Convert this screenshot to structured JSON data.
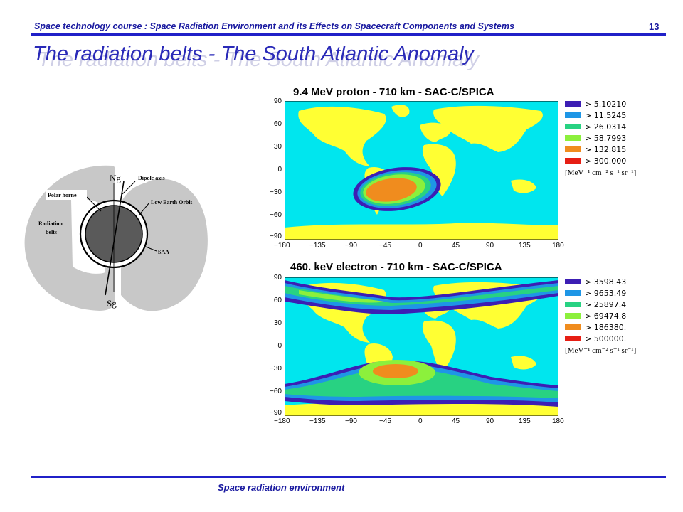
{
  "header": {
    "course_text": "Space technology course : Space Radiation Environment and its Effects on Spacecraft Components and Systems",
    "page_number": "13"
  },
  "slide": {
    "title": "The radiation belts - The South Atlantic Anomaly"
  },
  "diagram": {
    "labels": {
      "north": "Ng",
      "south": "Sg",
      "dipole_axis": "Dipole axis",
      "polar_horne": "Polar horne",
      "low_earth_orbit": "Low Earth Orbit",
      "radiation": "Radiation",
      "belts": "belts",
      "saa": "SAA"
    }
  },
  "maps": [
    {
      "title": "9.4 MeV proton - 710 km - SAC-C/SPICA",
      "y_ticks": [
        "90",
        "60",
        "30",
        "0",
        "−30",
        "−60",
        "−90"
      ],
      "x_ticks": [
        "−180",
        "−135",
        "−90",
        "−45",
        "0",
        "45",
        "90",
        "135",
        "180"
      ],
      "legend": [
        {
          "label": "> 5.10210",
          "color": "#3c1eb4"
        },
        {
          "label": "> 11.5245",
          "color": "#1e96e6"
        },
        {
          "label": "> 26.0314",
          "color": "#28d282"
        },
        {
          "label": "> 58.7993",
          "color": "#8cf03c"
        },
        {
          "label": "> 132.815",
          "color": "#f08c1e"
        },
        {
          "label": "> 300.000",
          "color": "#e61e14"
        }
      ],
      "unit": "[MeV⁻¹ cm⁻² s⁻¹ sr⁻¹]"
    },
    {
      "title": "460. keV electron - 710 km - SAC-C/SPICA",
      "y_ticks": [
        "90",
        "60",
        "30",
        "0",
        "−30",
        "−60",
        "−90"
      ],
      "x_ticks": [
        "−180",
        "−135",
        "−90",
        "−45",
        "0",
        "45",
        "90",
        "135",
        "180"
      ],
      "legend": [
        {
          "label": "> 3598.43",
          "color": "#3c1eb4"
        },
        {
          "label": "> 9653.49",
          "color": "#1e96e6"
        },
        {
          "label": "> 25897.4",
          "color": "#28d282"
        },
        {
          "label": "> 69474.8",
          "color": "#8cf03c"
        },
        {
          "label": "> 186380.",
          "color": "#f08c1e"
        },
        {
          "label": "> 500000.",
          "color": "#e61e14"
        }
      ],
      "unit": "[MeV⁻¹ cm⁻² s⁻¹ sr⁻¹]"
    }
  ],
  "footer": {
    "text": "Space radiation environment"
  },
  "colors": {
    "accent": "#2020c8",
    "ocean": "#00e6ee",
    "land": "#ffff33"
  }
}
